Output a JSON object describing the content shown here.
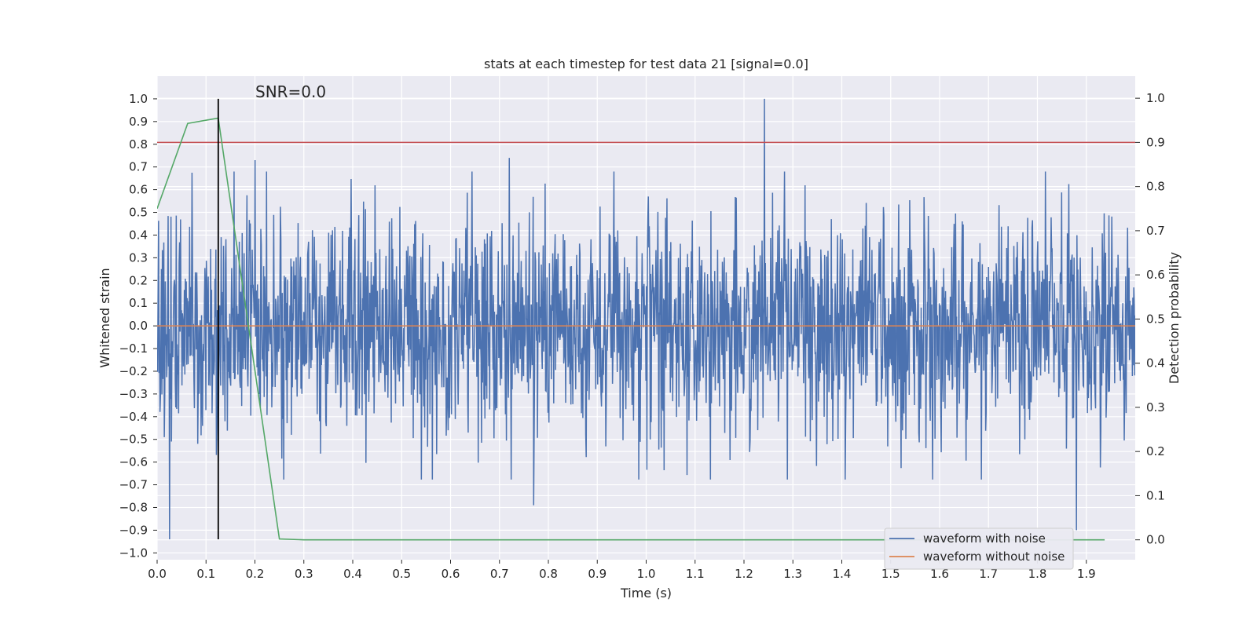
{
  "chart_data": {
    "type": "line",
    "title": "stats at each timestep for test data 21 [signal=0.0]",
    "xlabel": "Time (s)",
    "ylabel_left": "Whitened strain",
    "ylabel_right": "Detection probability",
    "xlim": [
      0.0,
      2.0
    ],
    "ylim_left": [
      -1.03,
      1.1
    ],
    "ylim_right": [
      -0.045,
      1.05
    ],
    "xticks": [
      "0.0",
      "0.1",
      "0.2",
      "0.3",
      "0.4",
      "0.5",
      "0.6",
      "0.7",
      "0.8",
      "0.9",
      "1.0",
      "1.1",
      "1.2",
      "1.3",
      "1.4",
      "1.5",
      "1.6",
      "1.7",
      "1.8",
      "1.9"
    ],
    "yticks_left": [
      "1.0",
      "0.9",
      "0.8",
      "0.7",
      "0.6",
      "0.5",
      "0.4",
      "0.3",
      "0.2",
      "0.1",
      "0.0",
      "−0.1",
      "−0.2",
      "−0.3",
      "−0.4",
      "−0.5",
      "−0.6",
      "−0.7",
      "−0.8",
      "−0.9",
      "−1.0"
    ],
    "yticks_right": [
      "1.0",
      "0.9",
      "0.8",
      "0.7",
      "0.6",
      "0.5",
      "0.4",
      "0.3",
      "0.2",
      "0.1",
      "0.0"
    ],
    "grid": true,
    "annotation": "SNR=0.0",
    "threshold_line": {
      "axis": "right",
      "value": 0.9,
      "color": "#c44e52"
    },
    "marker_line": {
      "x": 0.125,
      "y_from": -0.94,
      "y_to": 1.0,
      "color": "#000000"
    },
    "series": [
      {
        "name": "waveform with noise",
        "axis": "left",
        "color": "#4c72b0",
        "sample_count": 2048,
        "amplitude_range": [
          -0.94,
          1.0
        ],
        "peaks": [
          {
            "x": 1.242,
            "y": 1.0
          },
          {
            "x": 0.025,
            "y": -0.94
          },
          {
            "x": 1.88,
            "y": -0.9
          },
          {
            "x": 0.77,
            "y": -0.79
          },
          {
            "x": 0.2,
            "y": 0.73
          },
          {
            "x": 0.72,
            "y": 0.74
          },
          {
            "x": 0.125,
            "y": -0.6
          }
        ]
      },
      {
        "name": "waveform without noise",
        "axis": "left",
        "color": "#dd8452",
        "x": [
          0.0,
          2.0
        ],
        "y": [
          0.0,
          0.0
        ]
      },
      {
        "name": "detection probability",
        "axis": "right",
        "color": "#55a868",
        "x": [
          0.0,
          0.0625,
          0.125,
          0.25,
          0.3,
          1.9375
        ],
        "y": [
          0.75,
          0.943,
          0.955,
          0.002,
          0.0,
          0.0
        ]
      }
    ],
    "legend": {
      "placement": "lower-right",
      "entries": [
        {
          "label": "waveform with noise",
          "color": "#4c72b0"
        },
        {
          "label": "waveform without noise",
          "color": "#dd8452"
        }
      ]
    }
  }
}
